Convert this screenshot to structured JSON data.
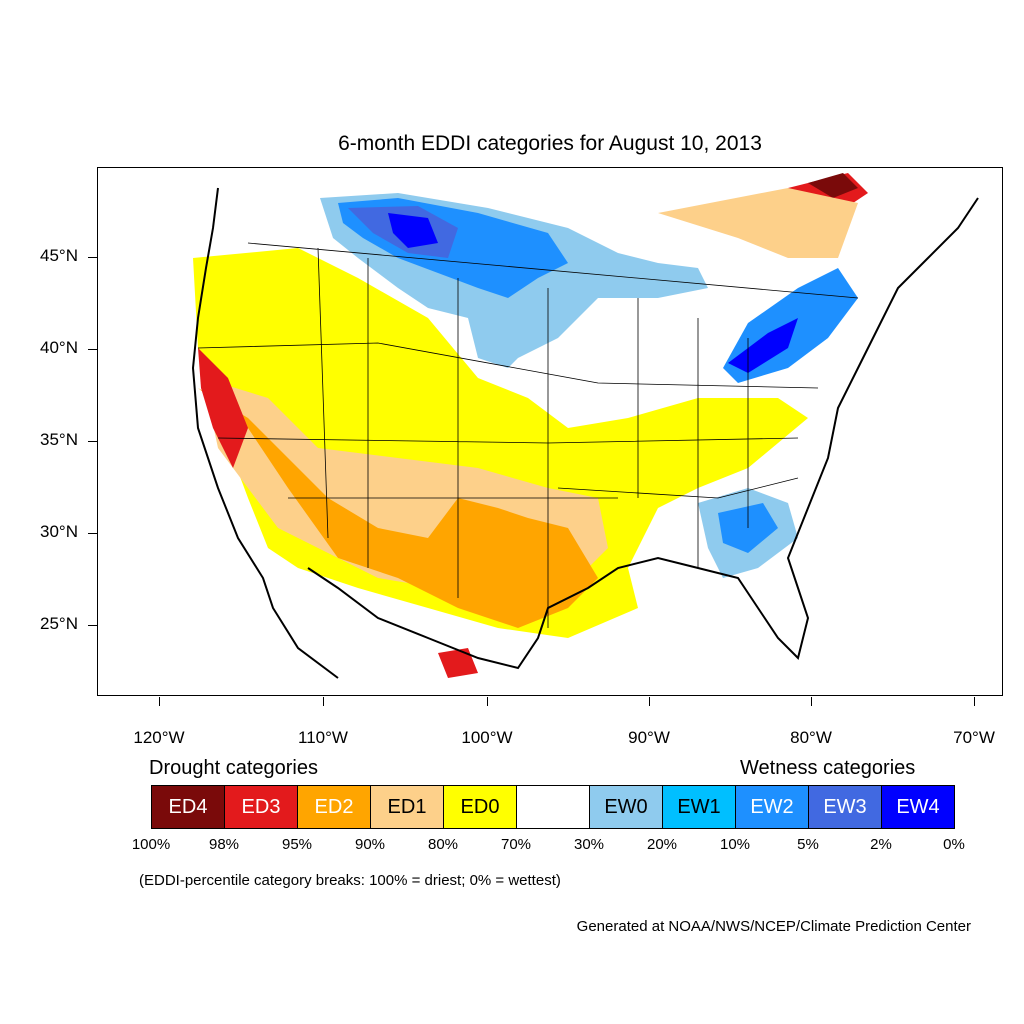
{
  "title": "6-month EDDI categories for August 10, 2013",
  "lat_labels": [
    "45°N",
    "40°N",
    "35°N",
    "30°N",
    "25°N"
  ],
  "lon_labels": [
    "120°W",
    "110°W",
    "100°W",
    "90°W",
    "80°W",
    "70°W"
  ],
  "legend": {
    "drought_title": "Drought categories",
    "wetness_title": "Wetness categories",
    "categories": [
      {
        "label": "ED4",
        "color": "#7a0a0a",
        "text_color": "#ffffff"
      },
      {
        "label": "ED3",
        "color": "#e31a1c",
        "text_color": "#ffffff"
      },
      {
        "label": "ED2",
        "color": "#ffa500",
        "text_color": "#ffffff"
      },
      {
        "label": "ED1",
        "color": "#fdd08a",
        "text_color": "#000000"
      },
      {
        "label": "ED0",
        "color": "#ffff00",
        "text_color": "#000000"
      },
      {
        "label": "",
        "color": "#ffffff",
        "text_color": "#000000"
      },
      {
        "label": "EW0",
        "color": "#8fcbee",
        "text_color": "#000000"
      },
      {
        "label": "EW1",
        "color": "#00bfff",
        "text_color": "#000000"
      },
      {
        "label": "EW2",
        "color": "#1e90ff",
        "text_color": "#ffffff"
      },
      {
        "label": "EW3",
        "color": "#4169e1",
        "text_color": "#ffffff"
      },
      {
        "label": "EW4",
        "color": "#0000ff",
        "text_color": "#ffffff"
      }
    ],
    "breaks": [
      "100%",
      "98%",
      "95%",
      "90%",
      "80%",
      "70%",
      "30%",
      "20%",
      "10%",
      "5%",
      "2%",
      "0%"
    ]
  },
  "footnote": "(EDDI-percentile category breaks: 100% = driest; 0% = wettest)",
  "credit": "Generated at NOAA/NWS/NCEP/Climate Prediction Center"
}
